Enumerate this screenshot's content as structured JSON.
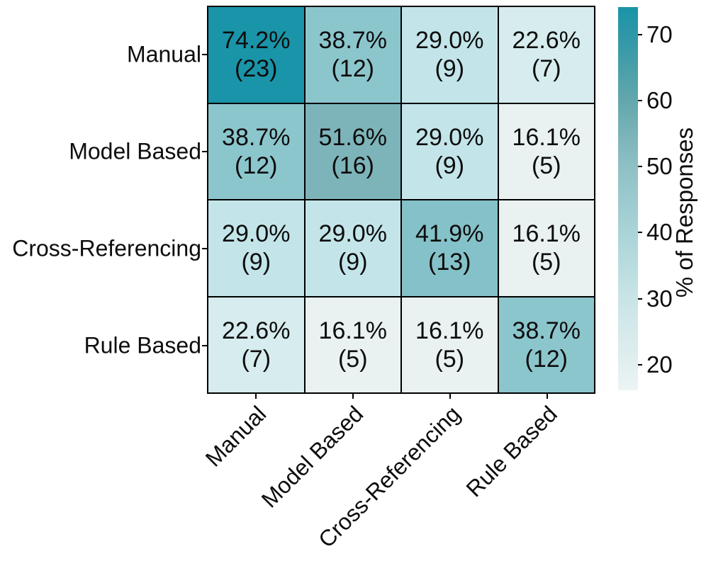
{
  "chart_data": {
    "type": "heatmap",
    "title": "",
    "row_labels": [
      "Manual",
      "Model Based",
      "Cross-Referencing",
      "Rule Based"
    ],
    "col_labels": [
      "Manual",
      "Model Based",
      "Cross-Referencing",
      "Rule Based"
    ],
    "cells": [
      [
        {
          "pct": "74.2%",
          "count": "(23)",
          "value": 74.2,
          "n": 23,
          "color": "#1a94a8"
        },
        {
          "pct": "38.7%",
          "count": "(12)",
          "value": 38.7,
          "n": 12,
          "color": "#8cc6cd"
        },
        {
          "pct": "29.0%",
          "count": "(9)",
          "value": 29.0,
          "n": 9,
          "color": "#c3e5e9"
        },
        {
          "pct": "22.6%",
          "count": "(7)",
          "value": 22.6,
          "n": 7,
          "color": "#d6ecee"
        }
      ],
      [
        {
          "pct": "38.7%",
          "count": "(12)",
          "value": 38.7,
          "n": 12,
          "color": "#8cc6cd"
        },
        {
          "pct": "51.6%",
          "count": "(16)",
          "value": 51.6,
          "n": 16,
          "color": "#7db4ba"
        },
        {
          "pct": "29.0%",
          "count": "(9)",
          "value": 29.0,
          "n": 9,
          "color": "#c3e5e9"
        },
        {
          "pct": "16.1%",
          "count": "(5)",
          "value": 16.1,
          "n": 5,
          "color": "#e9f1f1"
        }
      ],
      [
        {
          "pct": "29.0%",
          "count": "(9)",
          "value": 29.0,
          "n": 9,
          "color": "#c3e5e9"
        },
        {
          "pct": "29.0%",
          "count": "(9)",
          "value": 29.0,
          "n": 9,
          "color": "#c3e5e9"
        },
        {
          "pct": "41.9%",
          "count": "(13)",
          "value": 41.9,
          "n": 13,
          "color": "#85c1c8"
        },
        {
          "pct": "16.1%",
          "count": "(5)",
          "value": 16.1,
          "n": 5,
          "color": "#e9f1f1"
        }
      ],
      [
        {
          "pct": "22.6%",
          "count": "(7)",
          "value": 22.6,
          "n": 7,
          "color": "#d6ecee"
        },
        {
          "pct": "16.1%",
          "count": "(5)",
          "value": 16.1,
          "n": 5,
          "color": "#e9f1f1"
        },
        {
          "pct": "16.1%",
          "count": "(5)",
          "value": 16.1,
          "n": 5,
          "color": "#e9f1f1"
        },
        {
          "pct": "38.7%",
          "count": "(12)",
          "value": 38.7,
          "n": 12,
          "color": "#8cc6cd"
        }
      ]
    ],
    "colorbar": {
      "label": "% of Responses",
      "ticks": [
        "70",
        "60",
        "50",
        "40",
        "30",
        "20"
      ],
      "vmin": 16.1,
      "vmax": 74.2,
      "stops": [
        {
          "v": 74.2,
          "c": "#1a94a8"
        },
        {
          "v": 70,
          "c": "#2e97a7"
        },
        {
          "v": 60,
          "c": "#63a7ac"
        },
        {
          "v": 50,
          "c": "#8fc0c5"
        },
        {
          "v": 40,
          "c": "#a9d4d8"
        },
        {
          "v": 30,
          "c": "#c9e4e6"
        },
        {
          "v": 20,
          "c": "#e2eff0"
        },
        {
          "v": 16.1,
          "c": "#edf4f4"
        }
      ]
    },
    "axis_ranges": {
      "grid": "off",
      "legend": "colorbar-right"
    }
  }
}
